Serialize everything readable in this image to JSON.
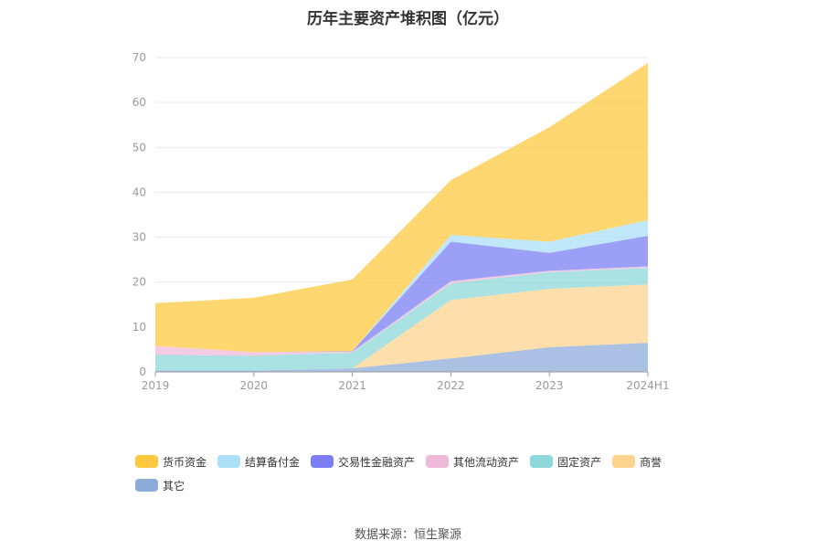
{
  "title": "历年主要资产堆积图（亿元）",
  "source": "数据来源：恒生聚源",
  "chart_data": {
    "type": "area",
    "stacked": true,
    "categories": [
      "2019",
      "2020",
      "2021",
      "2022",
      "2023",
      "2024H1"
    ],
    "ylim": [
      0,
      70
    ],
    "yticks": [
      "0",
      "10",
      "20",
      "30",
      "40",
      "50",
      "60",
      "70"
    ],
    "grid": true,
    "legend_position": "bottom",
    "series": [
      {
        "name": "其它",
        "color": "#8eacd9",
        "values": [
          0.3,
          0.3,
          0.8,
          3.0,
          5.5,
          6.5
        ]
      },
      {
        "name": "商誉",
        "color": "#fdd38e",
        "values": [
          0,
          0,
          0,
          13.0,
          13.0,
          13.0
        ]
      },
      {
        "name": "固定资产",
        "color": "#8dd8da",
        "values": [
          3.5,
          3.3,
          3.5,
          3.7,
          3.7,
          3.7
        ]
      },
      {
        "name": "其他流动资产",
        "color": "#efb9d8",
        "values": [
          2.0,
          0.8,
          0.2,
          0.5,
          0.3,
          0.3
        ]
      },
      {
        "name": "交易性金融资产",
        "color": "#7b7ff3",
        "values": [
          0,
          0,
          0.1,
          8.8,
          4.0,
          6.8
        ]
      },
      {
        "name": "结算备付金",
        "color": "#abe0f8",
        "values": [
          0,
          0,
          0,
          1.5,
          2.5,
          3.5
        ]
      },
      {
        "name": "货币资金",
        "color": "#fdc940",
        "values": [
          9.5,
          12.1,
          16.0,
          12.2,
          25.5,
          35.0
        ]
      }
    ],
    "legend_order": [
      "货币资金",
      "结算备付金",
      "交易性金融资产",
      "其他流动资产",
      "固定资产",
      "商誉",
      "其它"
    ]
  }
}
